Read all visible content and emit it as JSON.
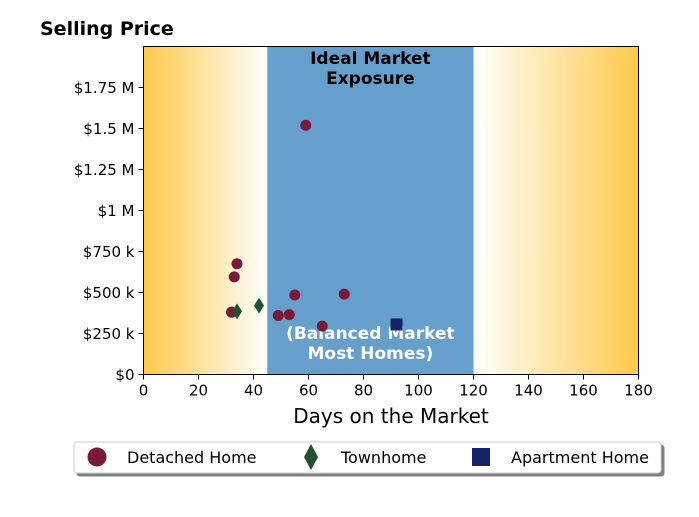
{
  "chart_data": {
    "type": "scatter",
    "title": "Selling Price",
    "xlabel": "Days on the Market",
    "ylabel": "",
    "xlim": [
      0,
      180
    ],
    "ylim": [
      0,
      2000000
    ],
    "x_ticks": [
      0,
      20,
      40,
      60,
      80,
      100,
      120,
      140,
      160,
      180
    ],
    "x_tick_labels": [
      "0",
      "20",
      "40",
      "60",
      "80",
      "100",
      "120",
      "140",
      "160",
      "180"
    ],
    "y_ticks": [
      0,
      250000,
      500000,
      750000,
      1000000,
      1250000,
      1500000,
      1750000
    ],
    "y_tick_labels": [
      "$0",
      "$250 k",
      "$500 k",
      "$750 k",
      "$1 M",
      "$1.25 M",
      "$1.5 M",
      "$1.75 M"
    ],
    "grid": false,
    "legend_position": "bottom",
    "bands": [
      {
        "from": 0,
        "to": 45,
        "style": "gradient",
        "color": "#ffc94a",
        "fade_to": "#ffffff",
        "direction": "left-to-right"
      },
      {
        "from": 45,
        "to": 120,
        "style": "solid",
        "color": "#679fcc",
        "label_top": "Ideal Market\nExposure",
        "label_bottom": "(Balanced Market\nMost Homes)"
      },
      {
        "from": 120,
        "to": 180,
        "style": "gradient",
        "color": "#ffc94a",
        "fade_to": "#ffffff",
        "direction": "right-to-left"
      }
    ],
    "series": [
      {
        "name": "Detached Home",
        "marker": "circle",
        "color": "#7a1a3a",
        "points": [
          {
            "x": 59,
            "y": 1520000
          },
          {
            "x": 34,
            "y": 675000
          },
          {
            "x": 33,
            "y": 595000
          },
          {
            "x": 55,
            "y": 485000
          },
          {
            "x": 73,
            "y": 490000
          },
          {
            "x": 32,
            "y": 380000
          },
          {
            "x": 49,
            "y": 360000
          },
          {
            "x": 53,
            "y": 365000
          },
          {
            "x": 65,
            "y": 295000
          }
        ]
      },
      {
        "name": "Townhome",
        "marker": "diamond",
        "color": "#1f5230",
        "points": [
          {
            "x": 34,
            "y": 385000
          },
          {
            "x": 42,
            "y": 420000
          }
        ]
      },
      {
        "name": "Apartment Home",
        "marker": "square",
        "color": "#142266",
        "points": [
          {
            "x": 92,
            "y": 305000
          }
        ]
      }
    ]
  }
}
